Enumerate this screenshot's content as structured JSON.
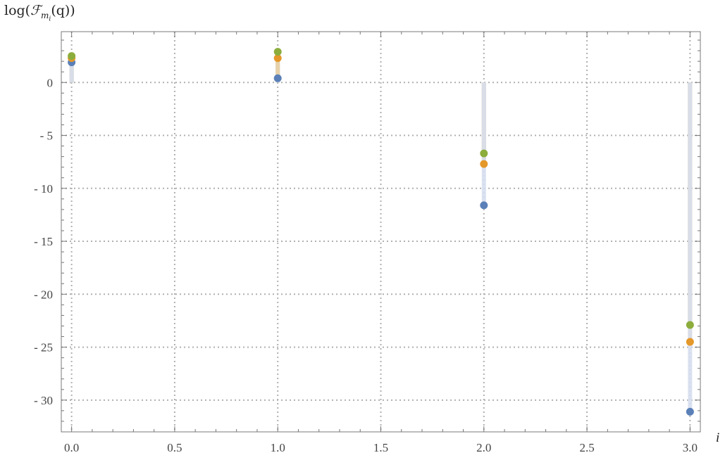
{
  "chart_data": {
    "type": "scatter",
    "title": "",
    "ylabel": {
      "prefix": "log(",
      "script": "ℱ",
      "sub": "m",
      "subsub": "i",
      "suffix": "(q))"
    },
    "xlabel": "i",
    "xlim": [
      -0.05,
      3.05
    ],
    "ylim": [
      -33,
      4.8
    ],
    "xticks": [
      0.0,
      0.5,
      1.0,
      1.5,
      2.0,
      2.5,
      3.0
    ],
    "xtick_labels": [
      "0.0",
      "0.5",
      "1.0",
      "1.5",
      "2.0",
      "2.5",
      "3.0"
    ],
    "yticks": [
      0,
      -5,
      -10,
      -15,
      -20,
      -25,
      -30
    ],
    "ytick_labels": [
      "0",
      "- 5",
      "- 10",
      "- 15",
      "- 20",
      "- 25",
      "- 30"
    ],
    "grid": true,
    "x": [
      0,
      1,
      2,
      3
    ],
    "series": [
      {
        "color": "#5b80b8",
        "fill_color": "#d6deee",
        "values": [
          1.9,
          0.4,
          -11.6,
          -31.1
        ]
      },
      {
        "color": "#e4982a",
        "fill_color": "#e9d2a8",
        "values": [
          2.3,
          2.3,
          -7.7,
          -24.5
        ]
      },
      {
        "color": "#8cad3c",
        "fill_color": "#c6c8a2",
        "values": [
          2.5,
          2.9,
          -6.7,
          -22.9
        ]
      }
    ]
  }
}
